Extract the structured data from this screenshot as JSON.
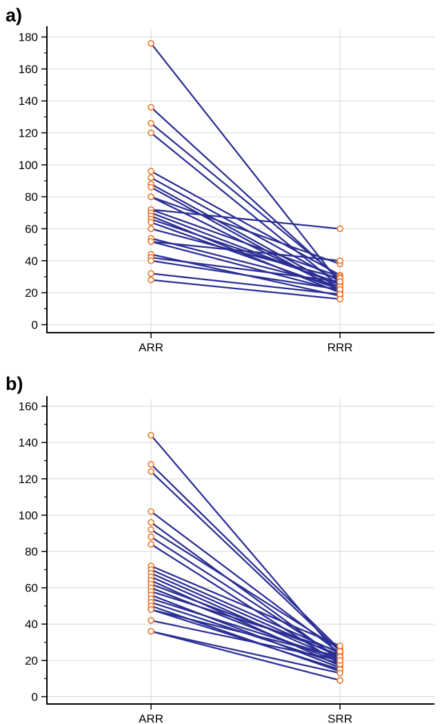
{
  "chart_data": [
    {
      "panel_label": "a)",
      "type": "line",
      "subtype": "paired-dot-plot",
      "categories": [
        "ARR",
        "RRR"
      ],
      "ylim": [
        -5,
        185
      ],
      "yticks": [
        0,
        20,
        40,
        60,
        80,
        100,
        120,
        140,
        160,
        180
      ],
      "grid": true,
      "line_color": "#2b2f94",
      "marker_color": "#e8742a",
      "pairs": [
        [
          176,
          26
        ],
        [
          136,
          28
        ],
        [
          126,
          29
        ],
        [
          120,
          24
        ],
        [
          96,
          31
        ],
        [
          92,
          27
        ],
        [
          88,
          23
        ],
        [
          86,
          21
        ],
        [
          80,
          38
        ],
        [
          80,
          22
        ],
        [
          72,
          60
        ],
        [
          72,
          30
        ],
        [
          70,
          25
        ],
        [
          68,
          20
        ],
        [
          66,
          26
        ],
        [
          64,
          22
        ],
        [
          60,
          29
        ],
        [
          54,
          24
        ],
        [
          52,
          40
        ],
        [
          52,
          21
        ],
        [
          44,
          18
        ],
        [
          42,
          27
        ],
        [
          40,
          22
        ],
        [
          32,
          19
        ],
        [
          28,
          16
        ]
      ]
    },
    {
      "panel_label": "b)",
      "type": "line",
      "subtype": "paired-dot-plot",
      "categories": [
        "ARR",
        "SRR"
      ],
      "ylim": [
        -4,
        164
      ],
      "yticks": [
        0,
        20,
        40,
        60,
        80,
        100,
        120,
        140,
        160
      ],
      "grid": true,
      "line_color": "#2b2f94",
      "marker_color": "#e8742a",
      "pairs": [
        [
          144,
          22
        ],
        [
          128,
          26
        ],
        [
          124,
          25
        ],
        [
          102,
          24
        ],
        [
          96,
          20
        ],
        [
          92,
          26
        ],
        [
          88,
          21
        ],
        [
          84,
          18
        ],
        [
          72,
          28
        ],
        [
          70,
          24
        ],
        [
          68,
          22
        ],
        [
          66,
          20
        ],
        [
          64,
          17
        ],
        [
          62,
          23
        ],
        [
          60,
          19
        ],
        [
          58,
          25
        ],
        [
          56,
          16
        ],
        [
          54,
          21
        ],
        [
          52,
          18
        ],
        [
          50,
          14
        ],
        [
          48,
          22
        ],
        [
          48,
          15
        ],
        [
          42,
          20
        ],
        [
          36,
          13
        ],
        [
          36,
          9
        ]
      ]
    }
  ]
}
